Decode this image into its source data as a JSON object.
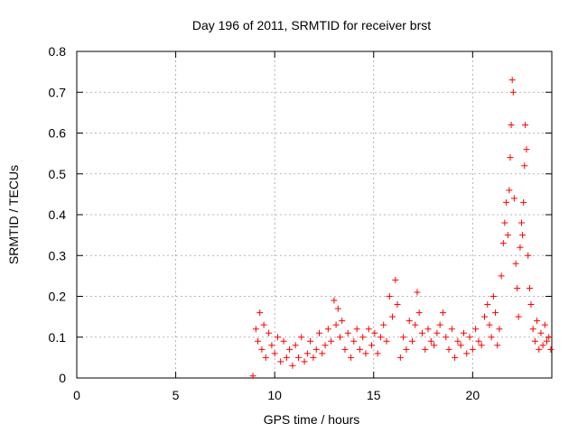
{
  "chart_data": {
    "type": "scatter",
    "title": "Day 196 of 2011, SRMTID for receiver brst",
    "xlabel": "GPS time / hours",
    "ylabel": "SRMTID / TECUs",
    "xlim": [
      0,
      24
    ],
    "ylim": [
      0,
      0.8
    ],
    "x_ticks": [
      0,
      5,
      10,
      15,
      20
    ],
    "y_ticks": [
      0,
      0.1,
      0.2,
      0.3,
      0.4,
      0.5,
      0.6,
      0.7,
      0.8
    ],
    "x_tick_labels": [
      "0",
      "5",
      "10",
      "15",
      "20"
    ],
    "y_tick_labels": [
      "0",
      "0.1",
      "0.2",
      "0.3",
      "0.4",
      "0.5",
      "0.6",
      "0.7",
      "0.8"
    ],
    "grid": true,
    "marker": "+",
    "color": "#ff0000",
    "series": [
      {
        "points": [
          [
            8.9,
            0.005
          ],
          [
            9.05,
            0.12
          ],
          [
            9.15,
            0.09
          ],
          [
            9.25,
            0.16
          ],
          [
            9.35,
            0.07
          ],
          [
            9.45,
            0.13
          ],
          [
            9.55,
            0.05
          ],
          [
            9.7,
            0.11
          ],
          [
            9.85,
            0.08
          ],
          [
            10.0,
            0.06
          ],
          [
            10.15,
            0.1
          ],
          [
            10.3,
            0.04
          ],
          [
            10.45,
            0.09
          ],
          [
            10.6,
            0.05
          ],
          [
            10.75,
            0.07
          ],
          [
            10.9,
            0.03
          ],
          [
            11.05,
            0.08
          ],
          [
            11.2,
            0.05
          ],
          [
            11.35,
            0.1
          ],
          [
            11.5,
            0.04
          ],
          [
            11.65,
            0.06
          ],
          [
            11.8,
            0.09
          ],
          [
            11.95,
            0.05
          ],
          [
            12.1,
            0.07
          ],
          [
            12.25,
            0.11
          ],
          [
            12.4,
            0.06
          ],
          [
            12.55,
            0.08
          ],
          [
            12.7,
            0.12
          ],
          [
            12.85,
            0.09
          ],
          [
            13.0,
            0.19
          ],
          [
            13.1,
            0.13
          ],
          [
            13.2,
            0.17
          ],
          [
            13.3,
            0.1
          ],
          [
            13.4,
            0.14
          ],
          [
            13.55,
            0.07
          ],
          [
            13.7,
            0.11
          ],
          [
            13.85,
            0.05
          ],
          [
            14.0,
            0.09
          ],
          [
            14.15,
            0.12
          ],
          [
            14.3,
            0.07
          ],
          [
            14.45,
            0.1
          ],
          [
            14.6,
            0.06
          ],
          [
            14.75,
            0.12
          ],
          [
            14.9,
            0.08
          ],
          [
            15.05,
            0.11
          ],
          [
            15.2,
            0.06
          ],
          [
            15.35,
            0.1
          ],
          [
            15.5,
            0.13
          ],
          [
            15.65,
            0.09
          ],
          [
            15.8,
            0.2
          ],
          [
            15.95,
            0.15
          ],
          [
            16.1,
            0.24
          ],
          [
            16.2,
            0.18
          ],
          [
            16.35,
            0.05
          ],
          [
            16.5,
            0.1
          ],
          [
            16.65,
            0.07
          ],
          [
            16.8,
            0.14
          ],
          [
            16.95,
            0.09
          ],
          [
            17.1,
            0.13
          ],
          [
            17.2,
            0.21
          ],
          [
            17.3,
            0.16
          ],
          [
            17.45,
            0.11
          ],
          [
            17.6,
            0.07
          ],
          [
            17.75,
            0.12
          ],
          [
            17.9,
            0.09
          ],
          [
            18.05,
            0.08
          ],
          [
            18.2,
            0.11
          ],
          [
            18.35,
            0.13
          ],
          [
            18.5,
            0.16
          ],
          [
            18.65,
            0.1
          ],
          [
            18.8,
            0.07
          ],
          [
            18.95,
            0.12
          ],
          [
            19.1,
            0.05
          ],
          [
            19.25,
            0.09
          ],
          [
            19.4,
            0.08
          ],
          [
            19.55,
            0.11
          ],
          [
            19.7,
            0.06
          ],
          [
            19.85,
            0.1
          ],
          [
            20.0,
            0.07
          ],
          [
            20.15,
            0.12
          ],
          [
            20.3,
            0.09
          ],
          [
            20.45,
            0.08
          ],
          [
            20.6,
            0.15
          ],
          [
            20.75,
            0.18
          ],
          [
            20.85,
            0.13
          ],
          [
            20.95,
            0.1
          ],
          [
            21.05,
            0.2
          ],
          [
            21.15,
            0.16
          ],
          [
            21.25,
            0.08
          ],
          [
            21.35,
            0.12
          ],
          [
            21.45,
            0.25
          ],
          [
            21.55,
            0.33
          ],
          [
            21.62,
            0.38
          ],
          [
            21.7,
            0.43
          ],
          [
            21.78,
            0.35
          ],
          [
            21.85,
            0.46
          ],
          [
            21.9,
            0.54
          ],
          [
            21.95,
            0.62
          ],
          [
            22.0,
            0.73
          ],
          [
            22.05,
            0.7
          ],
          [
            22.1,
            0.44
          ],
          [
            22.18,
            0.28
          ],
          [
            22.25,
            0.22
          ],
          [
            22.32,
            0.15
          ],
          [
            22.4,
            0.32
          ],
          [
            22.47,
            0.38
          ],
          [
            22.52,
            0.35
          ],
          [
            22.57,
            0.43
          ],
          [
            22.62,
            0.52
          ],
          [
            22.66,
            0.62
          ],
          [
            22.72,
            0.56
          ],
          [
            22.8,
            0.3
          ],
          [
            22.88,
            0.22
          ],
          [
            22.95,
            0.18
          ],
          [
            23.05,
            0.12
          ],
          [
            23.15,
            0.09
          ],
          [
            23.25,
            0.14
          ],
          [
            23.35,
            0.07
          ],
          [
            23.45,
            0.11
          ],
          [
            23.55,
            0.08
          ],
          [
            23.65,
            0.13
          ],
          [
            23.75,
            0.09
          ],
          [
            23.85,
            0.1
          ],
          [
            23.95,
            0.07
          ]
        ]
      }
    ]
  }
}
